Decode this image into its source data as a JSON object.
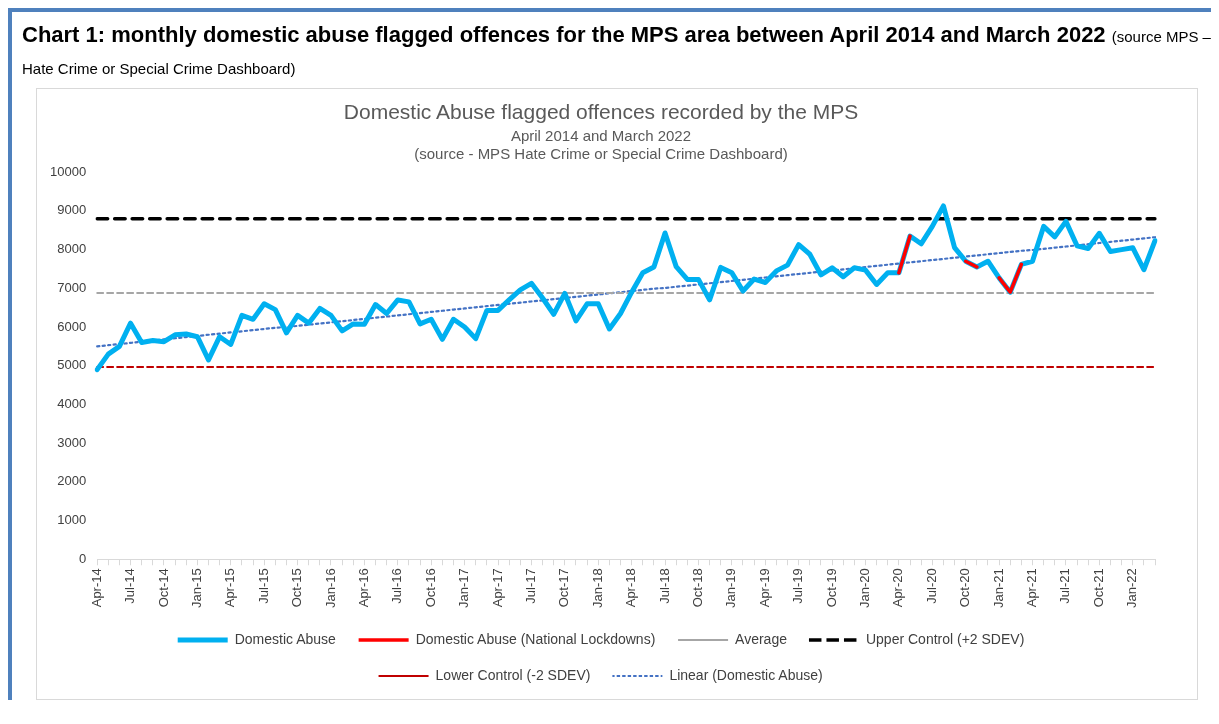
{
  "chart_data": {
    "type": "line",
    "title": "Domestic Abuse flagged offences recorded by the MPS",
    "subtitle": "April 2014 and March 2022\n(source - MPS Hate Crime or Special Crime Dashboard)",
    "annotations": [
      "Chart 1: monthly domestic abuse flagged offences for the MPS area between April 2014 and March 2022",
      "(source MPS – Hate Crime or Special Crime Dashboard)"
    ],
    "categories": [
      "Apr-14",
      null,
      null,
      "Jul-14",
      null,
      null,
      "Oct-14",
      null,
      null,
      "Jan-15",
      null,
      null,
      "Apr-15",
      null,
      null,
      "Jul-15",
      null,
      null,
      "Oct-15",
      null,
      null,
      "Jan-16",
      null,
      null,
      "Apr-16",
      null,
      null,
      "Jul-16",
      null,
      null,
      "Oct-16",
      null,
      null,
      "Jan-17",
      null,
      null,
      "Apr-17",
      null,
      null,
      "Jul-17",
      null,
      null,
      "Oct-17",
      null,
      null,
      "Jan-18",
      null,
      null,
      "Apr-18",
      null,
      null,
      "Jul-18",
      null,
      null,
      "Oct-18",
      null,
      null,
      "Jan-19",
      null,
      null,
      "Apr-19",
      null,
      null,
      "Jul-19",
      null,
      null,
      "Oct-19",
      null,
      null,
      "Jan-20",
      null,
      null,
      "Apr-20",
      null,
      null,
      "Jul-20",
      null,
      null,
      "Oct-20",
      null,
      null,
      "Jan-21",
      null,
      null,
      "Apr-21",
      null,
      null,
      "Jul-21",
      null,
      null,
      "Oct-21",
      null,
      null,
      "Jan-22",
      null,
      null
    ],
    "series": [
      {
        "name": "Domestic Abuse",
        "color": "#00b0f0",
        "values": [
          4900,
          5300,
          5500,
          6100,
          5600,
          5650,
          5620,
          5800,
          5820,
          5750,
          5150,
          5750,
          5550,
          6300,
          6200,
          6600,
          6450,
          5850,
          6300,
          6100,
          6480,
          6300,
          5900,
          6080,
          6070,
          6580,
          6350,
          6700,
          6650,
          6080,
          6200,
          5680,
          6200,
          6000,
          5700,
          6430,
          6430,
          6700,
          6960,
          7130,
          6750,
          6330,
          6870,
          6160,
          6600,
          6600,
          5950,
          6350,
          6900,
          7400,
          7550,
          8430,
          7560,
          7230,
          7230,
          6700,
          7540,
          7400,
          6930,
          7240,
          7150,
          7450,
          7600,
          8130,
          7880,
          7350,
          7530,
          7300,
          7530,
          7470,
          7100,
          7400,
          7400,
          8350,
          8150,
          8600,
          9130,
          8050,
          7700,
          7550,
          7700,
          7270,
          6900,
          7620,
          7700,
          8600,
          8330,
          8730,
          8100,
          8030,
          8420,
          7950,
          8000,
          8050,
          7480,
          8230
        ]
      },
      {
        "name": "Domestic Abuse (National Lockdowns)",
        "color": "#ff0000",
        "values": [
          null,
          null,
          null,
          null,
          null,
          null,
          null,
          null,
          null,
          null,
          null,
          null,
          null,
          null,
          null,
          null,
          null,
          null,
          null,
          null,
          null,
          null,
          null,
          null,
          null,
          null,
          null,
          null,
          null,
          null,
          null,
          null,
          null,
          null,
          null,
          null,
          null,
          null,
          null,
          null,
          null,
          null,
          null,
          null,
          null,
          null,
          null,
          null,
          null,
          null,
          null,
          null,
          null,
          null,
          null,
          null,
          null,
          null,
          null,
          null,
          null,
          null,
          null,
          null,
          null,
          null,
          null,
          null,
          null,
          null,
          null,
          null,
          7400,
          8350,
          null,
          null,
          null,
          null,
          7700,
          7550,
          null,
          7270,
          6900,
          7620,
          null,
          null,
          null,
          null,
          null,
          null,
          null,
          null,
          null,
          null,
          null,
          null
        ]
      },
      {
        "name": "Average",
        "color": "#a6a6a6",
        "line_style": "dashed",
        "values": [
          6880,
          6880,
          6880,
          6880,
          6880,
          6880,
          6880,
          6880,
          6880,
          6880,
          6880,
          6880,
          6880,
          6880,
          6880,
          6880,
          6880,
          6880,
          6880,
          6880,
          6880,
          6880,
          6880,
          6880,
          6880,
          6880,
          6880,
          6880,
          6880,
          6880,
          6880,
          6880,
          6880,
          6880,
          6880,
          6880,
          6880,
          6880,
          6880,
          6880,
          6880,
          6880,
          6880,
          6880,
          6880,
          6880,
          6880,
          6880,
          6880,
          6880,
          6880,
          6880,
          6880,
          6880,
          6880,
          6880,
          6880,
          6880,
          6880,
          6880,
          6880,
          6880,
          6880,
          6880,
          6880,
          6880,
          6880,
          6880,
          6880,
          6880,
          6880,
          6880,
          6880,
          6880,
          6880,
          6880,
          6880,
          6880,
          6880,
          6880,
          6880,
          6880,
          6880,
          6880,
          6880,
          6880,
          6880,
          6880,
          6880,
          6880,
          6880,
          6880,
          6880,
          6880,
          6880,
          6880
        ]
      },
      {
        "name": "Upper Control (+2 SDEV)",
        "color": "#000000",
        "line_style": "dashed",
        "values": [
          8800,
          8800,
          8800,
          8800,
          8800,
          8800,
          8800,
          8800,
          8800,
          8800,
          8800,
          8800,
          8800,
          8800,
          8800,
          8800,
          8800,
          8800,
          8800,
          8800,
          8800,
          8800,
          8800,
          8800,
          8800,
          8800,
          8800,
          8800,
          8800,
          8800,
          8800,
          8800,
          8800,
          8800,
          8800,
          8800,
          8800,
          8800,
          8800,
          8800,
          8800,
          8800,
          8800,
          8800,
          8800,
          8800,
          8800,
          8800,
          8800,
          8800,
          8800,
          8800,
          8800,
          8800,
          8800,
          8800,
          8800,
          8800,
          8800,
          8800,
          8800,
          8800,
          8800,
          8800,
          8800,
          8800,
          8800,
          8800,
          8800,
          8800,
          8800,
          8800,
          8800,
          8800,
          8800,
          8800,
          8800,
          8800,
          8800,
          8800,
          8800,
          8800,
          8800,
          8800,
          8800,
          8800,
          8800,
          8800,
          8800,
          8800,
          8800,
          8800,
          8800,
          8800,
          8800,
          8800
        ]
      },
      {
        "name": "Lower Control (-2 SDEV)",
        "color": "#c00000",
        "line_style": "dashed",
        "values": [
          4970,
          4970,
          4970,
          4970,
          4970,
          4970,
          4970,
          4970,
          4970,
          4970,
          4970,
          4970,
          4970,
          4970,
          4970,
          4970,
          4970,
          4970,
          4970,
          4970,
          4970,
          4970,
          4970,
          4970,
          4970,
          4970,
          4970,
          4970,
          4970,
          4970,
          4970,
          4970,
          4970,
          4970,
          4970,
          4970,
          4970,
          4970,
          4970,
          4970,
          4970,
          4970,
          4970,
          4970,
          4970,
          4970,
          4970,
          4970,
          4970,
          4970,
          4970,
          4970,
          4970,
          4970,
          4970,
          4970,
          4970,
          4970,
          4970,
          4970,
          4970,
          4970,
          4970,
          4970,
          4970,
          4970,
          4970,
          4970,
          4970,
          4970,
          4970,
          4970,
          4970,
          4970,
          4970,
          4970,
          4970,
          4970,
          4970,
          4970,
          4970,
          4970,
          4970,
          4970,
          4970,
          4970,
          4970,
          4970,
          4970,
          4970,
          4970,
          4970,
          4970,
          4970,
          4970,
          4970
        ]
      },
      {
        "name": "Linear (Domestic Abuse)",
        "type": "line",
        "color": "#4472c4",
        "line_style": "dotted",
        "values": [
          5500,
          5530,
          5560,
          5590,
          5620,
          5650,
          5680,
          5710,
          5740,
          5770,
          5800,
          5830,
          5860,
          5890,
          5920,
          5950,
          5980,
          6000,
          6030,
          6060,
          6090,
          6120,
          6150,
          6180,
          6210,
          6240,
          6270,
          6300,
          6330,
          6360,
          6390,
          6420,
          6450,
          6480,
          6510,
          6540,
          6570,
          6600,
          6630,
          6660,
          6690,
          6720,
          6750,
          6780,
          6810,
          6840,
          6870,
          6900,
          6930,
          6960,
          6990,
          7010,
          7040,
          7070,
          7100,
          7130,
          7160,
          7190,
          7220,
          7250,
          7280,
          7310,
          7340,
          7370,
          7400,
          7430,
          7460,
          7490,
          7520,
          7550,
          7580,
          7610,
          7640,
          7670,
          7700,
          7730,
          7760,
          7790,
          7820,
          7850,
          7880,
          7910,
          7940,
          7970,
          7990,
          8020,
          8050,
          8080,
          8110,
          8140,
          8170,
          8200,
          8230,
          8260,
          8290,
          8320
        ]
      }
    ],
    "ylim": [
      0,
      10000
    ],
    "yticks": [
      0,
      1000,
      2000,
      3000,
      4000,
      5000,
      6000,
      7000,
      8000,
      9000,
      10000
    ],
    "grid": false,
    "legend": "bottom",
    "marker": "none",
    "line_style": "solid"
  }
}
